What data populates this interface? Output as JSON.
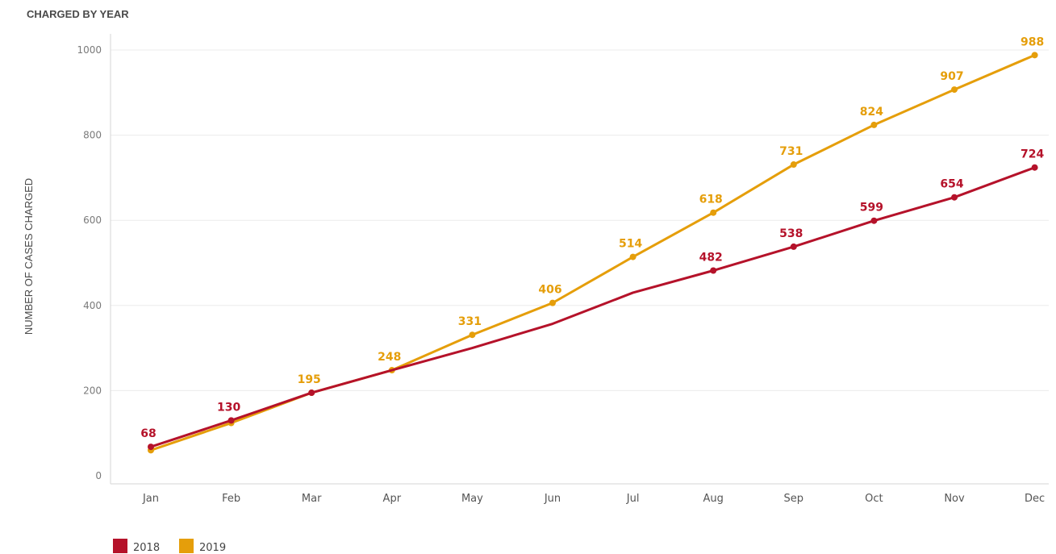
{
  "chart_data": {
    "type": "line",
    "title": "CHARGED BY YEAR",
    "xlabel": "",
    "ylabel": "NUMBER OF CASES CHARGED",
    "ylim": [
      0,
      1000
    ],
    "yticks": [
      0,
      200,
      400,
      600,
      800,
      1000
    ],
    "categories": [
      "Jan",
      "Feb",
      "Mar",
      "Apr",
      "May",
      "Jun",
      "Jul",
      "Aug",
      "Sep",
      "Oct",
      "Nov",
      "Dec"
    ],
    "grid": true,
    "legend": "bottom-left",
    "series": [
      {
        "name": "2018",
        "color": "#b5122a",
        "values": [
          68,
          130,
          195,
          248,
          300,
          357,
          430,
          482,
          538,
          599,
          654,
          724
        ],
        "labels": [
          "68",
          "130",
          "",
          "",
          "",
          "",
          "",
          "482",
          "538",
          "599",
          "654",
          "724"
        ],
        "markers": [
          true,
          true,
          true,
          false,
          false,
          false,
          false,
          true,
          true,
          true,
          true,
          true
        ]
      },
      {
        "name": "2019",
        "color": "#e59e0a",
        "values": [
          60,
          124,
          195,
          248,
          331,
          406,
          514,
          618,
          731,
          824,
          907,
          988
        ],
        "labels": [
          "",
          "",
          "195",
          "248",
          "331",
          "406",
          "514",
          "618",
          "731",
          "824",
          "907",
          "988"
        ],
        "markers": [
          true,
          true,
          true,
          true,
          true,
          true,
          true,
          true,
          true,
          true,
          true,
          true
        ]
      }
    ]
  }
}
